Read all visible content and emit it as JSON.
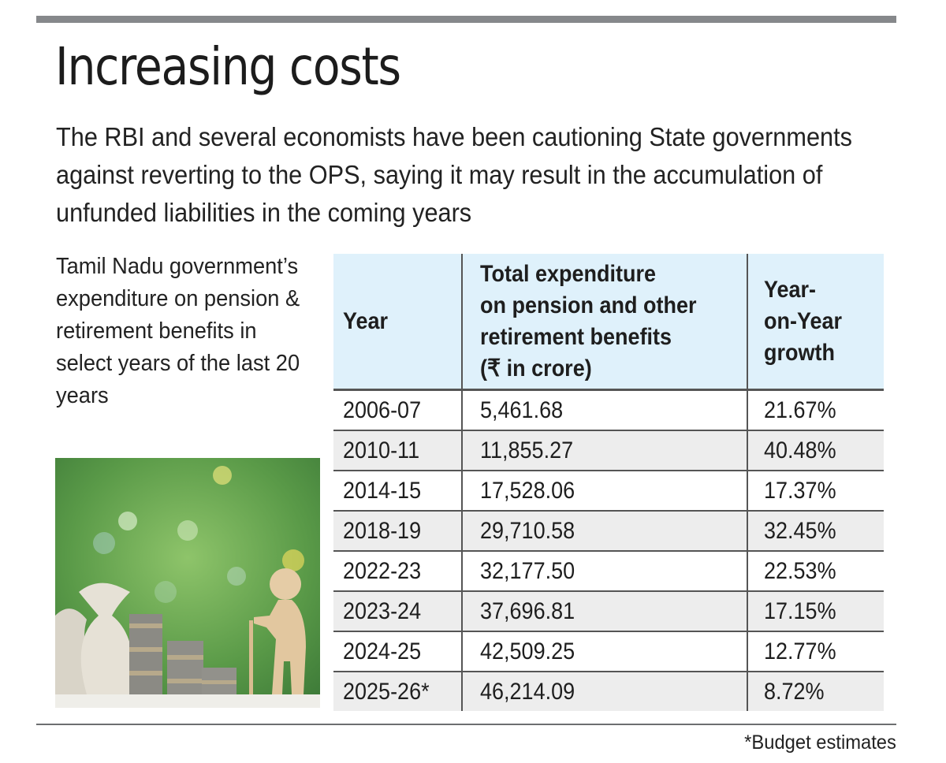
{
  "header": {
    "title": "Increasing costs",
    "subtitle": "The RBI and several economists have been cautioning State governments against reverting to the OPS, saying it may result in the accumulation of unfunded liabilities in the coming years"
  },
  "side_description": "Tamil Nadu government’s expenditure on pension & retirement benefits in select years of the last 20 years",
  "photo": {
    "description": "money bags, coin stacks and wooden elderly figure with cane",
    "icon": "retirement-savings-illustration"
  },
  "footnote": "*Budget estimates",
  "colors": {
    "header_bg": "#dff1fb",
    "alt_row_bg": "#ededed",
    "rule": "#86888b"
  },
  "chart_data": {
    "type": "table",
    "title": "Increasing costs",
    "columns": [
      "Year",
      "Total expenditure on pension and other retirement benefits (₹ in crore)",
      "Year-on-Year growth"
    ],
    "rows": [
      {
        "year": "2006-07",
        "expenditure": "5,461.68",
        "growth": "21.67%"
      },
      {
        "year": "2010-11",
        "expenditure": "11,855.27",
        "growth": "40.48%"
      },
      {
        "year": "2014-15",
        "expenditure": "17,528.06",
        "growth": "17.37%"
      },
      {
        "year": "2018-19",
        "expenditure": "29,710.58",
        "growth": "32.45%"
      },
      {
        "year": "2022-23",
        "expenditure": "32,177.50",
        "growth": "22.53%"
      },
      {
        "year": "2023-24",
        "expenditure": "37,696.81",
        "growth": "17.15%"
      },
      {
        "year": "2024-25",
        "expenditure": "42,509.25",
        "growth": "12.77%"
      },
      {
        "year": "2025-26*",
        "expenditure": "46,214.09",
        "growth": "8.72%"
      }
    ],
    "values_expenditure_crore": [
      5461.68,
      11855.27,
      17528.06,
      29710.58,
      32177.5,
      37696.81,
      42509.25,
      46214.09
    ],
    "values_growth_percent": [
      21.67,
      40.48,
      17.37,
      32.45,
      22.53,
      17.15,
      12.77,
      8.72
    ]
  },
  "table_header": {
    "year": "Year",
    "exp_lines": [
      "Total expenditure",
      "on pension and other",
      "retirement benefits",
      "(₹ in crore)"
    ],
    "growth_lines": [
      "Year-",
      "on-Year",
      "growth"
    ]
  }
}
